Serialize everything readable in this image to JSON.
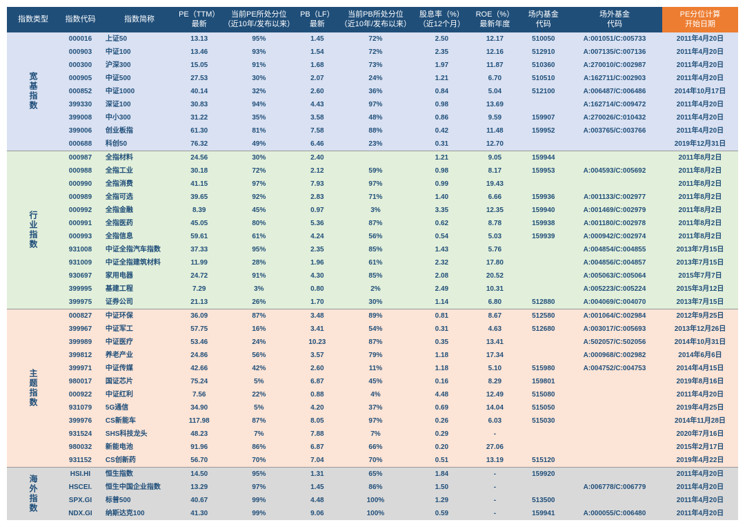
{
  "headers": [
    "指数类型",
    "指数代码",
    "指数简称",
    "PE（TTM）\n最新",
    "当前PE所处分位\n（近10年/发布以来）",
    "PB（LF）\n最新",
    "当前PB所处分位\n（近10年/发布以来）",
    "股息率（%）\n（近12个月）",
    "ROE（%）\n最新年度",
    "场内基金\n代码",
    "场外基金\n代码",
    "PE分位计算\n开始日期"
  ],
  "groups": [
    {
      "name": "宽基指数",
      "bg": "#d9e1f2",
      "rows": [
        [
          "000016",
          "上证50",
          "13.13",
          "95%",
          "1.45",
          "72%",
          "2.50",
          "12.17",
          "510050",
          "A:001051/C:005733",
          "2011年4月20日"
        ],
        [
          "000903",
          "中证100",
          "13.46",
          "93%",
          "1.54",
          "72%",
          "2.35",
          "12.16",
          "512910",
          "A:007135/C:007136",
          "2011年4月20日"
        ],
        [
          "000300",
          "沪深300",
          "15.05",
          "91%",
          "1.68",
          "73%",
          "1.97",
          "11.87",
          "510360",
          "A:270010/C:002987",
          "2011年4月20日"
        ],
        [
          "000905",
          "中证500",
          "27.53",
          "30%",
          "2.07",
          "24%",
          "1.21",
          "6.70",
          "510510",
          "A:162711/C:002903",
          "2011年4月20日"
        ],
        [
          "000852",
          "中证1000",
          "40.14",
          "32%",
          "2.60",
          "36%",
          "0.84",
          "5.04",
          "512100",
          "A:006487/C:006486",
          "2014年10月17日"
        ],
        [
          "399330",
          "深证100",
          "30.83",
          "94%",
          "4.43",
          "97%",
          "0.98",
          "13.69",
          "",
          "A:162714/C:009472",
          "2011年4月20日"
        ],
        [
          "399008",
          "中小300",
          "31.22",
          "35%",
          "3.58",
          "48%",
          "0.86",
          "9.59",
          "159907",
          "A:270026/C:010432",
          "2011年4月20日"
        ],
        [
          "399006",
          "创业板指",
          "61.30",
          "81%",
          "7.58",
          "88%",
          "0.42",
          "11.48",
          "159952",
          "A:003765/C:003766",
          "2011年4月20日"
        ],
        [
          "000688",
          "科创50",
          "76.32",
          "49%",
          "6.46",
          "23%",
          "0.31",
          "12.70",
          "",
          "",
          "2019年12月31日"
        ]
      ]
    },
    {
      "name": "行业指数",
      "bg": "#e2efda",
      "rows": [
        [
          "000987",
          "全指材料",
          "24.56",
          "30%",
          "2.40",
          "",
          "1.21",
          "9.05",
          "159944",
          "",
          "2011年8月2日"
        ],
        [
          "000988",
          "全指工业",
          "30.18",
          "72%",
          "2.12",
          "59%",
          "0.98",
          "8.17",
          "159953",
          "A:004593/C:005692",
          "2011年8月2日"
        ],
        [
          "000990",
          "全指消费",
          "41.15",
          "97%",
          "7.93",
          "97%",
          "0.99",
          "19.43",
          "",
          "",
          "2011年8月2日"
        ],
        [
          "000989",
          "全指可选",
          "39.65",
          "92%",
          "2.83",
          "71%",
          "1.40",
          "6.66",
          "159936",
          "A:001133/C:002977",
          "2011年8月2日"
        ],
        [
          "000992",
          "全指金融",
          "8.39",
          "45%",
          "0.97",
          "3%",
          "3.35",
          "12.35",
          "159940",
          "A:001469/C:002979",
          "2011年8月2日"
        ],
        [
          "000991",
          "全指医药",
          "45.05",
          "80%",
          "5.36",
          "87%",
          "0.62",
          "8.78",
          "159938",
          "A:001180/C:002978",
          "2011年8月2日"
        ],
        [
          "000993",
          "全指信息",
          "59.61",
          "61%",
          "4.24",
          "56%",
          "0.54",
          "5.03",
          "159939",
          "A:000942/C:002974",
          "2011年8月2日"
        ],
        [
          "931008",
          "中证全指汽车指数",
          "37.33",
          "95%",
          "2.35",
          "85%",
          "1.43",
          "5.76",
          "",
          "A:004854/C:004855",
          "2013年7月15日"
        ],
        [
          "931009",
          "中证全指建筑材料",
          "11.99",
          "28%",
          "1.96",
          "61%",
          "2.32",
          "17.80",
          "",
          "A:004856/C:004857",
          "2013年7月15日"
        ],
        [
          "930697",
          "家用电器",
          "24.72",
          "91%",
          "4.30",
          "85%",
          "2.08",
          "20.52",
          "",
          "A:005063/C:005064",
          "2015年7月7日"
        ],
        [
          "399995",
          "基建工程",
          "7.29",
          "3%",
          "0.80",
          "2%",
          "2.49",
          "10.31",
          "",
          "A:005223/C:005224",
          "2015年3月12日"
        ],
        [
          "399975",
          "证券公司",
          "21.13",
          "26%",
          "1.70",
          "30%",
          "1.14",
          "6.80",
          "512880",
          "A:004069/C:004070",
          "2013年7月15日"
        ]
      ]
    },
    {
      "name": "主题指数",
      "bg": "#fce4d6",
      "rows": [
        [
          "000827",
          "中证环保",
          "36.09",
          "87%",
          "3.48",
          "89%",
          "0.81",
          "8.67",
          "512580",
          "A:001064/C:002984",
          "2012年9月25日"
        ],
        [
          "399967",
          "中证军工",
          "57.75",
          "16%",
          "3.41",
          "54%",
          "0.31",
          "4.63",
          "512680",
          "A:003017/C:005693",
          "2013年12月26日"
        ],
        [
          "399989",
          "中证医疗",
          "53.46",
          "24%",
          "10.23",
          "87%",
          "0.35",
          "13.41",
          "",
          "A:502057/C:502056",
          "2014年10月31日"
        ],
        [
          "399812",
          "养老产业",
          "24.86",
          "56%",
          "3.57",
          "79%",
          "1.18",
          "17.34",
          "",
          "A:000968/C:002982",
          "2014年6月6日"
        ],
        [
          "399971",
          "中证传媒",
          "42.66",
          "42%",
          "2.60",
          "11%",
          "1.18",
          "5.10",
          "515980",
          "A:004752/C:004753",
          "2014年4月15日"
        ],
        [
          "980017",
          "国证芯片",
          "75.24",
          "5%",
          "6.87",
          "45%",
          "0.16",
          "8.29",
          "159801",
          "",
          "2019年8月16日"
        ],
        [
          "000922",
          "中证红利",
          "7.56",
          "22%",
          "0.88",
          "4%",
          "4.48",
          "12.49",
          "515080",
          "",
          "2011年4月20日"
        ],
        [
          "931079",
          "5G通信",
          "34.90",
          "5%",
          "4.20",
          "37%",
          "0.69",
          "14.04",
          "515050",
          "",
          "2019年4月25日"
        ],
        [
          "399976",
          "CS新能车",
          "117.98",
          "87%",
          "8.05",
          "97%",
          "0.26",
          "6.03",
          "515030",
          "",
          "2014年11月28日"
        ],
        [
          "931524",
          "SHS科技龙头",
          "48.23",
          "7%",
          "7.88",
          "7%",
          "0.29",
          "-",
          "",
          "",
          "2020年7月16日"
        ],
        [
          "980032",
          "新能电池",
          "91.96",
          "86%",
          "6.87",
          "66%",
          "0.20",
          "27.06",
          "",
          "",
          "2015年2月17日"
        ],
        [
          "931152",
          "CS创新药",
          "56.70",
          "70%",
          "7.04",
          "70%",
          "0.51",
          "13.19",
          "515120",
          "",
          "2019年4月22日"
        ]
      ]
    },
    {
      "name": "海外指数",
      "bg": "#d9d9d9",
      "rows": [
        [
          "HSI.HI",
          "恒生指数",
          "14.50",
          "95%",
          "1.31",
          "65%",
          "1.84",
          "-",
          "159920",
          "",
          "2011年4月20日"
        ],
        [
          "HSCEI.",
          "恒生中国企业指数",
          "13.29",
          "97%",
          "1.45",
          "86%",
          "1.50",
          "-",
          "",
          "A:006778/C:006779",
          "2011年4月20日"
        ],
        [
          "SPX.GI",
          "标普500",
          "40.67",
          "99%",
          "4.48",
          "100%",
          "1.29",
          "-",
          "513500",
          "",
          "2011年4月20日"
        ],
        [
          "NDX.GI",
          "纳斯达克100",
          "41.30",
          "99%",
          "9.06",
          "100%",
          "0.59",
          "-",
          "159941",
          "A:000055/C:006480",
          "2011年4月20日"
        ]
      ]
    }
  ],
  "colWidths": [
    "24px",
    "58px",
    "110px",
    "60px",
    "110px",
    "56px",
    "110px",
    "80px",
    "70px",
    "66px",
    "136px",
    "110px"
  ]
}
